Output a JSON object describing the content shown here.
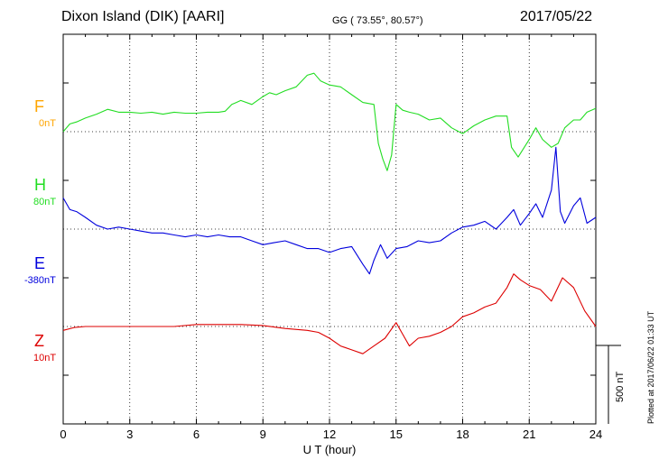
{
  "header": {
    "station": "Dixon Island (DIK)  [AARI]",
    "coords": "GG ( 73.55°,  80.57°)",
    "date": "2017/05/22"
  },
  "plotted_note": "Plotted at 2017/06/22 01:33 UT",
  "scale_bar_label": "500 nT",
  "series_labels": [
    {
      "name": "F",
      "offset": "0nT",
      "color": "#ffa500"
    },
    {
      "name": "H",
      "offset": "80nT",
      "color": "#22dd22"
    },
    {
      "name": "E",
      "offset": "-380nT",
      "color": "#0000dd"
    },
    {
      "name": "Z",
      "offset": "10nT",
      "color": "#dd0000"
    }
  ],
  "chart_data": {
    "type": "line",
    "title": "Dixon Island (DIK)  [AARI]",
    "xlabel": "U T (hour)",
    "xlim": [
      0,
      24
    ],
    "xticks": [
      "0",
      "3",
      "6",
      "9",
      "12",
      "15",
      "18",
      "21",
      "24"
    ],
    "ylim": [
      -1000,
      1000
    ],
    "y_unit": "nT (relative, scale bar 500 nT)",
    "grid": true,
    "series": [
      {
        "name": "H",
        "color": "#22dd22",
        "baseline": 500,
        "x": [
          0,
          0.3,
          0.6,
          1,
          1.5,
          2,
          2.5,
          3,
          3.5,
          4,
          4.5,
          5,
          5.5,
          6,
          6.5,
          7,
          7.3,
          7.6,
          7.8,
          8,
          8.5,
          9,
          9.3,
          9.6,
          10,
          10.5,
          11,
          11.3,
          11.6,
          12,
          12.5,
          13,
          13.5,
          14,
          14.2,
          14.4,
          14.6,
          14.8,
          15,
          15.3,
          15.6,
          16,
          16.5,
          17,
          17.5,
          18,
          18.5,
          19,
          19.5,
          20,
          20.2,
          20.5,
          21,
          21.3,
          21.6,
          22,
          22.3,
          22.6,
          23,
          23.3,
          23.6,
          24
        ],
        "y": [
          500,
          540,
          550,
          570,
          590,
          615,
          600,
          600,
          595,
          600,
          590,
          600,
          595,
          595,
          600,
          600,
          605,
          640,
          650,
          660,
          640,
          680,
          700,
          690,
          710,
          730,
          790,
          800,
          760,
          740,
          730,
          690,
          650,
          640,
          440,
          360,
          300,
          380,
          640,
          610,
          600,
          590,
          560,
          570,
          520,
          490,
          530,
          560,
          580,
          580,
          420,
          370,
          460,
          520,
          460,
          420,
          440,
          520,
          560,
          560,
          600,
          620
        ]
      },
      {
        "name": "E",
        "color": "#0000dd",
        "baseline": 0,
        "x": [
          0,
          0.3,
          0.6,
          1,
          1.5,
          2,
          2.5,
          3,
          3.5,
          4,
          4.5,
          5,
          5.5,
          6,
          6.5,
          7,
          7.5,
          8,
          8.5,
          9,
          9.5,
          10,
          10.5,
          11,
          11.5,
          12,
          12.5,
          13,
          13.5,
          13.8,
          14,
          14.3,
          14.6,
          15,
          15.5,
          16,
          16.5,
          17,
          17.5,
          18,
          18.5,
          19,
          19.5,
          20,
          20.3,
          20.6,
          21,
          21.3,
          21.6,
          22,
          22.2,
          22.4,
          22.6,
          23,
          23.3,
          23.6,
          24
        ],
        "y": [
          160,
          100,
          90,
          60,
          20,
          0,
          10,
          0,
          -10,
          -20,
          -20,
          -30,
          -40,
          -30,
          -40,
          -30,
          -40,
          -40,
          -60,
          -80,
          -70,
          -60,
          -80,
          -100,
          -100,
          -120,
          -100,
          -90,
          -180,
          -230,
          -160,
          -80,
          -150,
          -100,
          -90,
          -60,
          -70,
          -60,
          -20,
          10,
          20,
          40,
          0,
          60,
          100,
          20,
          80,
          130,
          60,
          200,
          420,
          90,
          30,
          120,
          160,
          30,
          60
        ]
      },
      {
        "name": "Z",
        "color": "#dd0000",
        "baseline": -500,
        "x": [
          0,
          0.5,
          1,
          1.5,
          2,
          3,
          4,
          5,
          6,
          7,
          8,
          9,
          10,
          11,
          11.5,
          12,
          12.5,
          13,
          13.5,
          14,
          14.5,
          15,
          15.3,
          15.6,
          16,
          16.5,
          17,
          17.5,
          18,
          18.5,
          19,
          19.5,
          20,
          20.3,
          20.6,
          21,
          21.5,
          22,
          22.5,
          23,
          23.5,
          24
        ],
        "y": [
          -520,
          -505,
          -500,
          -500,
          -500,
          -500,
          -500,
          -500,
          -490,
          -490,
          -490,
          -495,
          -510,
          -520,
          -530,
          -560,
          -600,
          -620,
          -640,
          -600,
          -560,
          -480,
          -540,
          -600,
          -560,
          -550,
          -530,
          -500,
          -450,
          -430,
          -400,
          -380,
          -300,
          -230,
          -260,
          -290,
          -310,
          -370,
          -250,
          -300,
          -420,
          -500
        ]
      }
    ]
  }
}
